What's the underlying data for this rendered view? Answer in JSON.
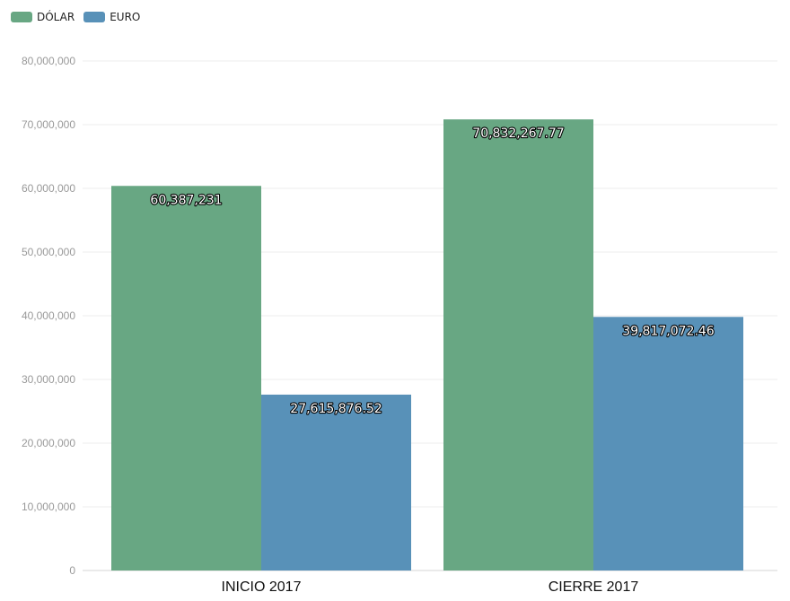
{
  "legend": {
    "items": [
      {
        "label": "DÓLAR",
        "color": "#68a783"
      },
      {
        "label": "EURO",
        "color": "#5891b8"
      }
    ]
  },
  "chart_data": {
    "type": "bar",
    "title": "",
    "xlabel": "",
    "ylabel": "",
    "categories": [
      "INICIO 2017",
      "CIERRE 2017"
    ],
    "series": [
      {
        "name": "DÓLAR",
        "color": "#68a783",
        "values": [
          60387231,
          70832267.77
        ],
        "labels": [
          "60,387,231",
          "70,832,267.77"
        ]
      },
      {
        "name": "EURO",
        "color": "#5891b8",
        "values": [
          27615876.52,
          39817072.46
        ],
        "labels": [
          "27,615,876.52",
          "39,817,072.46"
        ]
      }
    ],
    "ylim": [
      0,
      80000000
    ],
    "yticks": [
      0,
      10000000,
      20000000,
      30000000,
      40000000,
      50000000,
      60000000,
      70000000,
      80000000
    ],
    "ytick_labels": [
      "0",
      "10,000,000",
      "20,000,000",
      "30,000,000",
      "40,000,000",
      "50,000,000",
      "60,000,000",
      "70,000,000",
      "80,000,000"
    ],
    "grid": true,
    "legend_position": "top-left"
  }
}
